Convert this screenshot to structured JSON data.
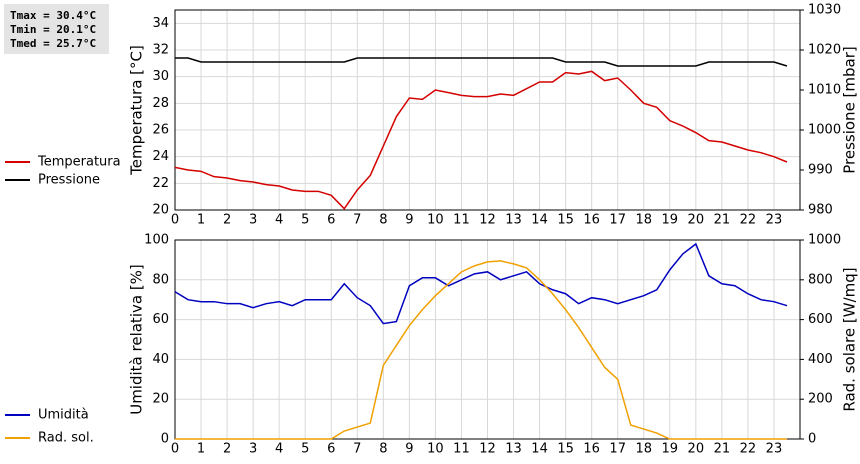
{
  "chart_data": [
    {
      "type": "line",
      "annotations": [
        "Tmax = 30.4°C",
        "Tmin = 20.1°C",
        "Tmed = 25.7°C"
      ],
      "ylabel": "Temperatura [°C]",
      "y2label": "Pressione [mbar]",
      "x": [
        0,
        0.5,
        1,
        1.5,
        2,
        2.5,
        3,
        3.5,
        4,
        4.5,
        5,
        5.5,
        6,
        6.5,
        7,
        7.5,
        8,
        8.5,
        9,
        9.5,
        10,
        10.5,
        11,
        11.5,
        12,
        12.5,
        13,
        13.5,
        14,
        14.5,
        15,
        15.5,
        16,
        16.5,
        17,
        17.5,
        18,
        18.5,
        19,
        19.5,
        20,
        20.5,
        21,
        21.5,
        22,
        22.5,
        23,
        23.5
      ],
      "xlim": [
        0,
        24
      ],
      "xticks": [
        0,
        1,
        2,
        3,
        4,
        5,
        6,
        7,
        8,
        9,
        10,
        11,
        12,
        13,
        14,
        15,
        16,
        17,
        18,
        19,
        20,
        21,
        22,
        23
      ],
      "ylim": [
        20,
        35
      ],
      "yticks": [
        20,
        22,
        24,
        26,
        28,
        30,
        32,
        34
      ],
      "y2lim": [
        980,
        1030
      ],
      "y2ticks": [
        980,
        990,
        1000,
        1010,
        1020,
        1030
      ],
      "grid": true,
      "series": [
        {
          "name": "Temperatura",
          "color": "#d40000",
          "values": [
            23.2,
            23.0,
            22.9,
            22.5,
            22.4,
            22.2,
            22.1,
            21.9,
            21.8,
            21.5,
            21.4,
            21.4,
            21.1,
            20.1,
            21.5,
            22.6,
            24.8,
            27.0,
            28.4,
            28.3,
            29.0,
            28.8,
            28.6,
            28.5,
            28.5,
            28.7,
            28.6,
            29.1,
            29.6,
            29.6,
            30.3,
            30.2,
            30.4,
            29.7,
            29.9,
            29.0,
            28.0,
            27.7,
            26.7,
            26.3,
            25.8,
            25.2,
            25.1,
            24.8,
            24.5,
            24.3,
            24.0,
            23.6
          ]
        },
        {
          "name": "Pressione",
          "color": "#000000",
          "axis": "y2",
          "values": [
            1018,
            1018,
            1017,
            1017,
            1017,
            1017,
            1017,
            1017,
            1017,
            1017,
            1017,
            1017,
            1017,
            1017,
            1018,
            1018,
            1018,
            1018,
            1018,
            1018,
            1018,
            1018,
            1018,
            1018,
            1018,
            1018,
            1018,
            1018,
            1018,
            1018,
            1017,
            1017,
            1017,
            1017,
            1016,
            1016,
            1016,
            1016,
            1016,
            1016,
            1016,
            1017,
            1017,
            1017,
            1017,
            1017,
            1017,
            1016
          ]
        }
      ]
    },
    {
      "type": "line",
      "ylabel": "Umidità relativa [%]",
      "y2label": "Rad. solare [W/mq]",
      "x": [
        0,
        0.5,
        1,
        1.5,
        2,
        2.5,
        3,
        3.5,
        4,
        4.5,
        5,
        5.5,
        6,
        6.5,
        7,
        7.5,
        8,
        8.5,
        9,
        9.5,
        10,
        10.5,
        11,
        11.5,
        12,
        12.5,
        13,
        13.5,
        14,
        14.5,
        15,
        15.5,
        16,
        16.5,
        17,
        17.5,
        18,
        18.5,
        19,
        19.5,
        20,
        20.5,
        21,
        21.5,
        22,
        22.5,
        23,
        23.5
      ],
      "xlim": [
        0,
        24
      ],
      "xticks": [
        0,
        1,
        2,
        3,
        4,
        5,
        6,
        7,
        8,
        9,
        10,
        11,
        12,
        13,
        14,
        15,
        16,
        17,
        18,
        19,
        20,
        21,
        22,
        23
      ],
      "ylim": [
        0,
        100
      ],
      "yticks": [
        0,
        20,
        40,
        60,
        80,
        100
      ],
      "y2lim": [
        0,
        1000
      ],
      "y2ticks": [
        0,
        200,
        400,
        600,
        800,
        1000
      ],
      "grid": true,
      "series": [
        {
          "name": "Umidità",
          "color": "#0000c0",
          "values": [
            74,
            70,
            69,
            69,
            68,
            68,
            66,
            68,
            69,
            67,
            70,
            70,
            70,
            78,
            71,
            67,
            58,
            59,
            77,
            81,
            81,
            77,
            80,
            83,
            84,
            80,
            82,
            84,
            78,
            75,
            73,
            68,
            71,
            70,
            68,
            70,
            72,
            75,
            85,
            93,
            98,
            82,
            78,
            77,
            73,
            70,
            69,
            67
          ]
        },
        {
          "name": "Rad. sol.",
          "color": "#f0a000",
          "axis": "y2",
          "values": [
            0,
            0,
            0,
            0,
            0,
            0,
            0,
            0,
            0,
            0,
            0,
            0,
            0,
            40,
            60,
            80,
            370,
            470,
            570,
            650,
            720,
            780,
            840,
            870,
            890,
            895,
            880,
            860,
            800,
            730,
            650,
            560,
            460,
            360,
            300,
            70,
            50,
            30,
            0,
            0,
            0,
            0,
            0,
            0,
            0,
            0,
            0,
            0
          ]
        }
      ]
    }
  ]
}
